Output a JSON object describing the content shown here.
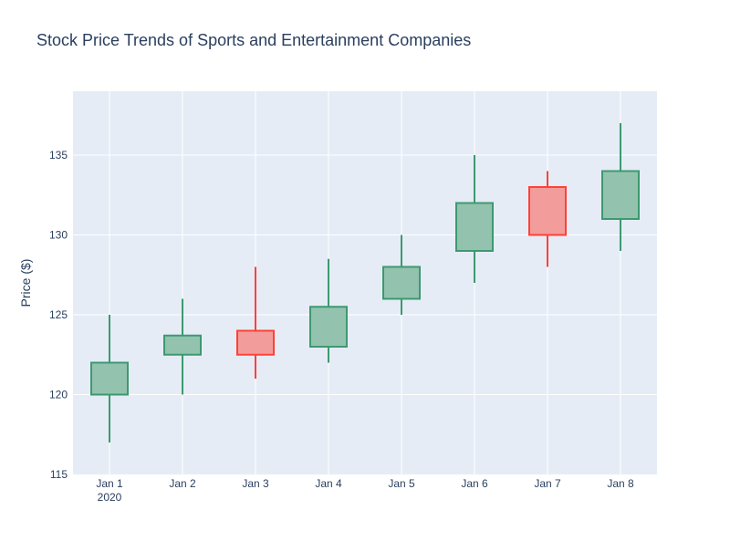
{
  "chart_data": {
    "type": "candlestick",
    "title": "Stock Price Trends of Sports and Entertainment Companies",
    "xlabel": "",
    "ylabel": "Price ($)",
    "categories": [
      "Jan 1",
      "Jan 2",
      "Jan 3",
      "Jan 4",
      "Jan 5",
      "Jan 6",
      "Jan 7",
      "Jan 8"
    ],
    "year_label": "2020",
    "ylim": [
      115,
      139
    ],
    "yticks": [
      115,
      120,
      125,
      130,
      135
    ],
    "grid": true,
    "series": [
      {
        "open": [
          120,
          122.5,
          124,
          123,
          126,
          129,
          133,
          131
        ],
        "high": [
          125,
          126,
          128,
          128.5,
          130,
          135,
          134,
          137
        ],
        "low": [
          117,
          120,
          121,
          122,
          125,
          127,
          128,
          129
        ],
        "close": [
          122,
          123.7,
          122.5,
          125.5,
          128,
          132,
          130,
          134
        ]
      }
    ],
    "colors": {
      "increasing_line": "#3D9970",
      "increasing_fill": "#93C3AE",
      "decreasing_line": "#FF4136",
      "decreasing_fill": "#F39C9C",
      "plot_bg": "#E5ECF6",
      "grid": "#ffffff",
      "text": "#2a3f5f"
    }
  }
}
